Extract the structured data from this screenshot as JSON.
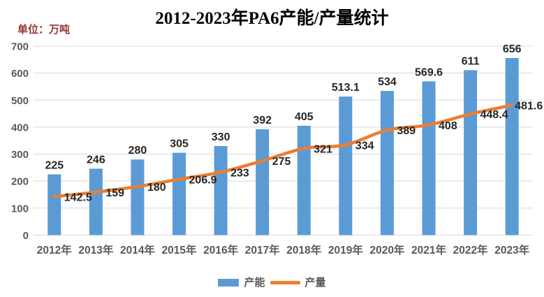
{
  "chart_data": {
    "type": "bar",
    "title": "2012-2023年PA6产能/产量统计",
    "unit_label": "单位：万吨",
    "categories": [
      "2012年",
      "2013年",
      "2014年",
      "2015年",
      "2016年",
      "2017年",
      "2018年",
      "2019年",
      "2020年",
      "2021年",
      "2022年",
      "2023年"
    ],
    "series": [
      {
        "name": "产能",
        "type": "bar",
        "color": "#5B9BD5",
        "values": [
          225,
          246,
          280,
          305,
          330,
          392,
          405,
          513.1,
          534,
          569.6,
          611,
          656
        ]
      },
      {
        "name": "产量",
        "type": "line",
        "color": "#ED7D31",
        "values": [
          142.5,
          159,
          180,
          206.9,
          233,
          275,
          321,
          334,
          389,
          408,
          448.4,
          481.6
        ]
      }
    ],
    "ylim": [
      0,
      700
    ],
    "ytick_step": 100,
    "yticks": [
      0,
      100,
      200,
      300,
      400,
      500,
      600,
      700
    ],
    "grid": true,
    "legend_position": "bottom",
    "colors": {
      "grid": "#D9D9D9",
      "axis_text": "#595959",
      "value_text": "#262626",
      "title_text": "#000000",
      "unit_text": "#943634"
    }
  }
}
